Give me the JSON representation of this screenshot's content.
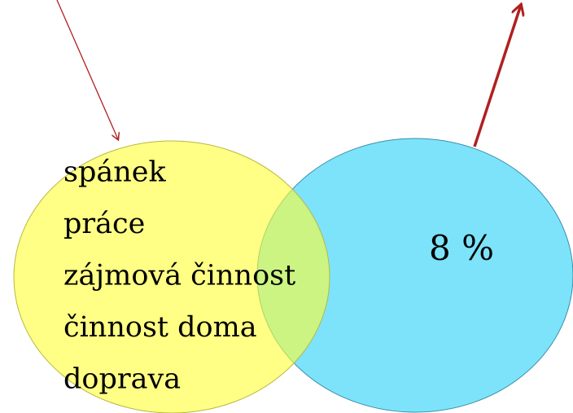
{
  "diagram": {
    "left_items": [
      "spánek",
      "práce",
      "zájmová činnost",
      "činnost doma",
      "doprava"
    ],
    "right_label": "8 %"
  }
}
